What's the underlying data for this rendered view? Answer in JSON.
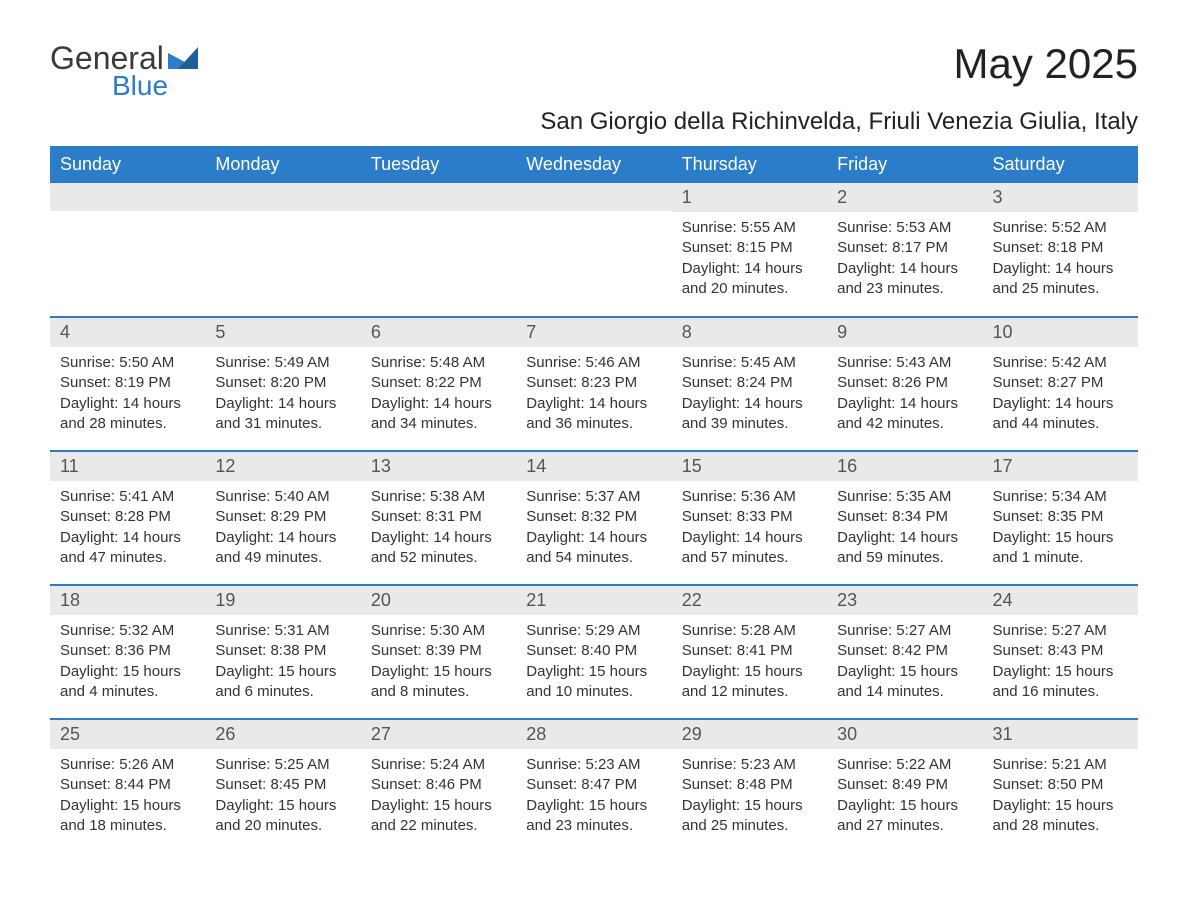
{
  "logo": {
    "text1": "General",
    "text2": "Blue"
  },
  "title": "May 2025",
  "location": "San Giorgio della Richinvelda, Friuli Venezia Giulia, Italy",
  "colors": {
    "header_bg": "#2b7cc9",
    "header_text": "#ffffff",
    "daynum_bg": "#e9e9e9",
    "row_border": "#2b7cc9",
    "body_bg": "#ffffff",
    "text": "#333333"
  },
  "columns": [
    "Sunday",
    "Monday",
    "Tuesday",
    "Wednesday",
    "Thursday",
    "Friday",
    "Saturday"
  ],
  "weeks": [
    [
      {
        "blank": true
      },
      {
        "blank": true
      },
      {
        "blank": true
      },
      {
        "blank": true
      },
      {
        "day": "1",
        "sunrise": "Sunrise: 5:55 AM",
        "sunset": "Sunset: 8:15 PM",
        "daylight": "Daylight: 14 hours and 20 minutes."
      },
      {
        "day": "2",
        "sunrise": "Sunrise: 5:53 AM",
        "sunset": "Sunset: 8:17 PM",
        "daylight": "Daylight: 14 hours and 23 minutes."
      },
      {
        "day": "3",
        "sunrise": "Sunrise: 5:52 AM",
        "sunset": "Sunset: 8:18 PM",
        "daylight": "Daylight: 14 hours and 25 minutes."
      }
    ],
    [
      {
        "day": "4",
        "sunrise": "Sunrise: 5:50 AM",
        "sunset": "Sunset: 8:19 PM",
        "daylight": "Daylight: 14 hours and 28 minutes."
      },
      {
        "day": "5",
        "sunrise": "Sunrise: 5:49 AM",
        "sunset": "Sunset: 8:20 PM",
        "daylight": "Daylight: 14 hours and 31 minutes."
      },
      {
        "day": "6",
        "sunrise": "Sunrise: 5:48 AM",
        "sunset": "Sunset: 8:22 PM",
        "daylight": "Daylight: 14 hours and 34 minutes."
      },
      {
        "day": "7",
        "sunrise": "Sunrise: 5:46 AM",
        "sunset": "Sunset: 8:23 PM",
        "daylight": "Daylight: 14 hours and 36 minutes."
      },
      {
        "day": "8",
        "sunrise": "Sunrise: 5:45 AM",
        "sunset": "Sunset: 8:24 PM",
        "daylight": "Daylight: 14 hours and 39 minutes."
      },
      {
        "day": "9",
        "sunrise": "Sunrise: 5:43 AM",
        "sunset": "Sunset: 8:26 PM",
        "daylight": "Daylight: 14 hours and 42 minutes."
      },
      {
        "day": "10",
        "sunrise": "Sunrise: 5:42 AM",
        "sunset": "Sunset: 8:27 PM",
        "daylight": "Daylight: 14 hours and 44 minutes."
      }
    ],
    [
      {
        "day": "11",
        "sunrise": "Sunrise: 5:41 AM",
        "sunset": "Sunset: 8:28 PM",
        "daylight": "Daylight: 14 hours and 47 minutes."
      },
      {
        "day": "12",
        "sunrise": "Sunrise: 5:40 AM",
        "sunset": "Sunset: 8:29 PM",
        "daylight": "Daylight: 14 hours and 49 minutes."
      },
      {
        "day": "13",
        "sunrise": "Sunrise: 5:38 AM",
        "sunset": "Sunset: 8:31 PM",
        "daylight": "Daylight: 14 hours and 52 minutes."
      },
      {
        "day": "14",
        "sunrise": "Sunrise: 5:37 AM",
        "sunset": "Sunset: 8:32 PM",
        "daylight": "Daylight: 14 hours and 54 minutes."
      },
      {
        "day": "15",
        "sunrise": "Sunrise: 5:36 AM",
        "sunset": "Sunset: 8:33 PM",
        "daylight": "Daylight: 14 hours and 57 minutes."
      },
      {
        "day": "16",
        "sunrise": "Sunrise: 5:35 AM",
        "sunset": "Sunset: 8:34 PM",
        "daylight": "Daylight: 14 hours and 59 minutes."
      },
      {
        "day": "17",
        "sunrise": "Sunrise: 5:34 AM",
        "sunset": "Sunset: 8:35 PM",
        "daylight": "Daylight: 15 hours and 1 minute."
      }
    ],
    [
      {
        "day": "18",
        "sunrise": "Sunrise: 5:32 AM",
        "sunset": "Sunset: 8:36 PM",
        "daylight": "Daylight: 15 hours and 4 minutes."
      },
      {
        "day": "19",
        "sunrise": "Sunrise: 5:31 AM",
        "sunset": "Sunset: 8:38 PM",
        "daylight": "Daylight: 15 hours and 6 minutes."
      },
      {
        "day": "20",
        "sunrise": "Sunrise: 5:30 AM",
        "sunset": "Sunset: 8:39 PM",
        "daylight": "Daylight: 15 hours and 8 minutes."
      },
      {
        "day": "21",
        "sunrise": "Sunrise: 5:29 AM",
        "sunset": "Sunset: 8:40 PM",
        "daylight": "Daylight: 15 hours and 10 minutes."
      },
      {
        "day": "22",
        "sunrise": "Sunrise: 5:28 AM",
        "sunset": "Sunset: 8:41 PM",
        "daylight": "Daylight: 15 hours and 12 minutes."
      },
      {
        "day": "23",
        "sunrise": "Sunrise: 5:27 AM",
        "sunset": "Sunset: 8:42 PM",
        "daylight": "Daylight: 15 hours and 14 minutes."
      },
      {
        "day": "24",
        "sunrise": "Sunrise: 5:27 AM",
        "sunset": "Sunset: 8:43 PM",
        "daylight": "Daylight: 15 hours and 16 minutes."
      }
    ],
    [
      {
        "day": "25",
        "sunrise": "Sunrise: 5:26 AM",
        "sunset": "Sunset: 8:44 PM",
        "daylight": "Daylight: 15 hours and 18 minutes."
      },
      {
        "day": "26",
        "sunrise": "Sunrise: 5:25 AM",
        "sunset": "Sunset: 8:45 PM",
        "daylight": "Daylight: 15 hours and 20 minutes."
      },
      {
        "day": "27",
        "sunrise": "Sunrise: 5:24 AM",
        "sunset": "Sunset: 8:46 PM",
        "daylight": "Daylight: 15 hours and 22 minutes."
      },
      {
        "day": "28",
        "sunrise": "Sunrise: 5:23 AM",
        "sunset": "Sunset: 8:47 PM",
        "daylight": "Daylight: 15 hours and 23 minutes."
      },
      {
        "day": "29",
        "sunrise": "Sunrise: 5:23 AM",
        "sunset": "Sunset: 8:48 PM",
        "daylight": "Daylight: 15 hours and 25 minutes."
      },
      {
        "day": "30",
        "sunrise": "Sunrise: 5:22 AM",
        "sunset": "Sunset: 8:49 PM",
        "daylight": "Daylight: 15 hours and 27 minutes."
      },
      {
        "day": "31",
        "sunrise": "Sunrise: 5:21 AM",
        "sunset": "Sunset: 8:50 PM",
        "daylight": "Daylight: 15 hours and 28 minutes."
      }
    ]
  ]
}
